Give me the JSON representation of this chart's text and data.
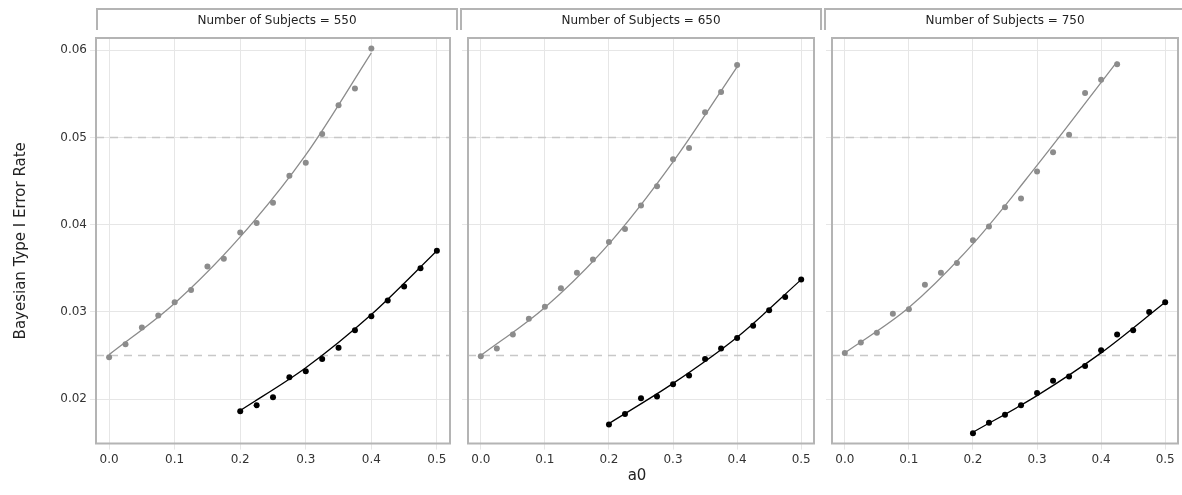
{
  "chart_data": [
    {
      "type": "scatter",
      "title": "Number of Subjects = 550",
      "ylabel": "Bayesian Type I Error Rate",
      "xlim": [
        -0.02,
        0.52
      ],
      "ylim": [
        0.0149,
        0.0614
      ],
      "xticks": [
        {
          "value": 0,
          "label": "0.0"
        },
        {
          "value": 0.1,
          "label": "0.1"
        },
        {
          "value": 0.2,
          "label": "0.2"
        },
        {
          "value": 0.3,
          "label": "0.3"
        },
        {
          "value": 0.4,
          "label": "0.4"
        },
        {
          "value": 0.5,
          "label": "0.5"
        }
      ],
      "yticks": [
        0.02,
        0.03,
        0.04,
        0.05,
        0.06
      ],
      "grid": true,
      "legend": false,
      "marker": "circle",
      "ref_lines": [
        {
          "axis": "y",
          "value": 0.025,
          "color": "#c8c8c8",
          "line_style": "dashed"
        },
        {
          "axis": "y",
          "value": 0.05,
          "color": "#c8c8c8",
          "line_style": "dashed"
        }
      ],
      "series": [
        {
          "color": "#8c8c8c",
          "x": [
            0,
            0.025,
            0.05,
            0.075,
            0.1,
            0.125,
            0.15,
            0.175,
            0.2,
            0.225,
            0.25,
            0.275,
            0.3,
            0.325,
            0.35,
            0.375,
            0.4
          ],
          "values": [
            0.0248,
            0.0263,
            0.0282,
            0.0296,
            0.0311,
            0.0325,
            0.0352,
            0.0361,
            0.0391,
            0.0402,
            0.0425,
            0.0456,
            0.0471,
            0.0504,
            0.0537,
            0.0556,
            0.0602
          ]
        },
        {
          "color": "#000000",
          "x": [
            0.2,
            0.225,
            0.25,
            0.275,
            0.3,
            0.325,
            0.35,
            0.375,
            0.4,
            0.425,
            0.45,
            0.475,
            0.5
          ],
          "values": [
            0.0186,
            0.0193,
            0.0202,
            0.0225,
            0.0232,
            0.0246,
            0.0259,
            0.0279,
            0.0295,
            0.0313,
            0.0329,
            0.035,
            0.037
          ]
        },
        {
          "type": "line",
          "marker": "none",
          "color": "#8c8c8c",
          "x": [
            0,
            0.1,
            0.2,
            0.3,
            0.4
          ],
          "values": [
            0.0251,
            0.031,
            0.0386,
            0.048,
            0.0597
          ]
        },
        {
          "type": "line",
          "marker": "none",
          "color": "#000000",
          "x": [
            0.2,
            0.3,
            0.4,
            0.5
          ],
          "values": [
            0.0187,
            0.0236,
            0.0297,
            0.037
          ]
        }
      ]
    },
    {
      "type": "scatter",
      "title": "Number of Subjects = 650",
      "xlabel": "a0",
      "xlim": [
        -0.02,
        0.52
      ],
      "ylim": [
        0.0149,
        0.0614
      ],
      "tick_labels": "x",
      "xticks": [
        {
          "value": 0,
          "label": "0.0"
        },
        {
          "value": 0.1,
          "label": "0.1"
        },
        {
          "value": 0.2,
          "label": "0.2"
        },
        {
          "value": 0.3,
          "label": "0.3"
        },
        {
          "value": 0.4,
          "label": "0.4"
        },
        {
          "value": 0.5,
          "label": "0.5"
        }
      ],
      "yticks": [
        0.02,
        0.03,
        0.04,
        0.05,
        0.06
      ],
      "grid": true,
      "legend": false,
      "marker": "circle",
      "ref_lines": [
        {
          "axis": "y",
          "value": 0.025,
          "color": "#c8c8c8",
          "line_style": "dashed"
        },
        {
          "axis": "y",
          "value": 0.05,
          "color": "#c8c8c8",
          "line_style": "dashed"
        }
      ],
      "series": [
        {
          "color": "#8c8c8c",
          "x": [
            0,
            0.025,
            0.05,
            0.075,
            0.1,
            0.125,
            0.15,
            0.175,
            0.2,
            0.225,
            0.25,
            0.275,
            0.3,
            0.325,
            0.35,
            0.375,
            0.4
          ],
          "values": [
            0.0249,
            0.0258,
            0.0274,
            0.0292,
            0.0306,
            0.0327,
            0.0345,
            0.036,
            0.038,
            0.0395,
            0.0422,
            0.0444,
            0.0475,
            0.0488,
            0.0529,
            0.0552,
            0.0583
          ]
        },
        {
          "color": "#000000",
          "x": [
            0.2,
            0.225,
            0.25,
            0.275,
            0.3,
            0.325,
            0.35,
            0.375,
            0.4,
            0.425,
            0.45,
            0.475,
            0.5
          ],
          "values": [
            0.0171,
            0.0183,
            0.0201,
            0.0203,
            0.0217,
            0.0227,
            0.0246,
            0.0258,
            0.027,
            0.0284,
            0.0302,
            0.0317,
            0.0337
          ]
        },
        {
          "type": "line",
          "marker": "none",
          "color": "#8c8c8c",
          "x": [
            0,
            0.1,
            0.2,
            0.3,
            0.4
          ],
          "values": [
            0.025,
            0.0305,
            0.0378,
            0.0472,
            0.0581
          ]
        },
        {
          "type": "line",
          "marker": "none",
          "color": "#000000",
          "x": [
            0.2,
            0.3,
            0.4,
            0.5
          ],
          "values": [
            0.0172,
            0.0218,
            0.0271,
            0.0337
          ]
        }
      ]
    },
    {
      "type": "scatter",
      "title": "Number of Subjects = 750",
      "xlim": [
        -0.02,
        0.52
      ],
      "ylim": [
        0.0149,
        0.0614
      ],
      "tick_labels": "x",
      "xticks": [
        {
          "value": 0,
          "label": "0.0"
        },
        {
          "value": 0.1,
          "label": "0.1"
        },
        {
          "value": 0.2,
          "label": "0.2"
        },
        {
          "value": 0.3,
          "label": "0.3"
        },
        {
          "value": 0.4,
          "label": "0.4"
        },
        {
          "value": 0.5,
          "label": "0.5"
        }
      ],
      "yticks": [
        0.02,
        0.03,
        0.04,
        0.05,
        0.06
      ],
      "grid": true,
      "legend": false,
      "marker": "circle",
      "ref_lines": [
        {
          "axis": "y",
          "value": 0.025,
          "color": "#c8c8c8",
          "line_style": "dashed"
        },
        {
          "axis": "y",
          "value": 0.05,
          "color": "#c8c8c8",
          "line_style": "dashed"
        }
      ],
      "series": [
        {
          "color": "#8c8c8c",
          "x": [
            0,
            0.025,
            0.05,
            0.075,
            0.1,
            0.125,
            0.15,
            0.175,
            0.2,
            0.225,
            0.25,
            0.275,
            0.3,
            0.325,
            0.35,
            0.375,
            0.4,
            0.425
          ],
          "values": [
            0.0253,
            0.0265,
            0.0276,
            0.0298,
            0.0303,
            0.0331,
            0.0345,
            0.0356,
            0.0382,
            0.0398,
            0.042,
            0.043,
            0.0461,
            0.0483,
            0.0503,
            0.0551,
            0.0566,
            0.0584
          ]
        },
        {
          "color": "#000000",
          "x": [
            0.2,
            0.225,
            0.25,
            0.275,
            0.3,
            0.325,
            0.35,
            0.375,
            0.4,
            0.425,
            0.45,
            0.475,
            0.5
          ],
          "values": [
            0.0161,
            0.0173,
            0.0182,
            0.0193,
            0.0207,
            0.0221,
            0.0226,
            0.0238,
            0.0256,
            0.0274,
            0.0279,
            0.03,
            0.0311
          ]
        },
        {
          "type": "line",
          "marker": "none",
          "color": "#8c8c8c",
          "x": [
            0,
            0.1,
            0.2,
            0.3,
            0.425
          ],
          "values": [
            0.0253,
            0.0305,
            0.0378,
            0.0468,
            0.0587
          ]
        },
        {
          "type": "line",
          "marker": "none",
          "color": "#000000",
          "x": [
            0.2,
            0.3,
            0.4,
            0.5
          ],
          "values": [
            0.0162,
            0.0204,
            0.0253,
            0.0311
          ]
        }
      ]
    }
  ]
}
